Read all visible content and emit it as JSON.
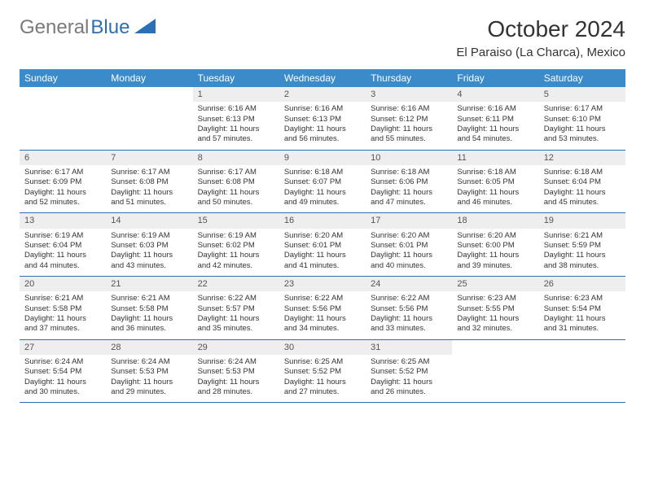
{
  "logo": {
    "gray": "General",
    "blue": "Blue"
  },
  "header": {
    "month_title": "October 2024",
    "location": "El Paraiso (La Charca), Mexico"
  },
  "colors": {
    "header_bg": "#3b8bca",
    "header_text": "#ffffff",
    "daynum_bg": "#eeeeee",
    "border": "#2b6fb5",
    "logo_gray": "#7a7a7a",
    "logo_blue": "#2b6fb5"
  },
  "weekdays": [
    "Sunday",
    "Monday",
    "Tuesday",
    "Wednesday",
    "Thursday",
    "Friday",
    "Saturday"
  ],
  "weeks": [
    [
      null,
      null,
      {
        "n": "1",
        "sunrise": "Sunrise: 6:16 AM",
        "sunset": "Sunset: 6:13 PM",
        "daylight": "Daylight: 11 hours and 57 minutes."
      },
      {
        "n": "2",
        "sunrise": "Sunrise: 6:16 AM",
        "sunset": "Sunset: 6:13 PM",
        "daylight": "Daylight: 11 hours and 56 minutes."
      },
      {
        "n": "3",
        "sunrise": "Sunrise: 6:16 AM",
        "sunset": "Sunset: 6:12 PM",
        "daylight": "Daylight: 11 hours and 55 minutes."
      },
      {
        "n": "4",
        "sunrise": "Sunrise: 6:16 AM",
        "sunset": "Sunset: 6:11 PM",
        "daylight": "Daylight: 11 hours and 54 minutes."
      },
      {
        "n": "5",
        "sunrise": "Sunrise: 6:17 AM",
        "sunset": "Sunset: 6:10 PM",
        "daylight": "Daylight: 11 hours and 53 minutes."
      }
    ],
    [
      {
        "n": "6",
        "sunrise": "Sunrise: 6:17 AM",
        "sunset": "Sunset: 6:09 PM",
        "daylight": "Daylight: 11 hours and 52 minutes."
      },
      {
        "n": "7",
        "sunrise": "Sunrise: 6:17 AM",
        "sunset": "Sunset: 6:08 PM",
        "daylight": "Daylight: 11 hours and 51 minutes."
      },
      {
        "n": "8",
        "sunrise": "Sunrise: 6:17 AM",
        "sunset": "Sunset: 6:08 PM",
        "daylight": "Daylight: 11 hours and 50 minutes."
      },
      {
        "n": "9",
        "sunrise": "Sunrise: 6:18 AM",
        "sunset": "Sunset: 6:07 PM",
        "daylight": "Daylight: 11 hours and 49 minutes."
      },
      {
        "n": "10",
        "sunrise": "Sunrise: 6:18 AM",
        "sunset": "Sunset: 6:06 PM",
        "daylight": "Daylight: 11 hours and 47 minutes."
      },
      {
        "n": "11",
        "sunrise": "Sunrise: 6:18 AM",
        "sunset": "Sunset: 6:05 PM",
        "daylight": "Daylight: 11 hours and 46 minutes."
      },
      {
        "n": "12",
        "sunrise": "Sunrise: 6:18 AM",
        "sunset": "Sunset: 6:04 PM",
        "daylight": "Daylight: 11 hours and 45 minutes."
      }
    ],
    [
      {
        "n": "13",
        "sunrise": "Sunrise: 6:19 AM",
        "sunset": "Sunset: 6:04 PM",
        "daylight": "Daylight: 11 hours and 44 minutes."
      },
      {
        "n": "14",
        "sunrise": "Sunrise: 6:19 AM",
        "sunset": "Sunset: 6:03 PM",
        "daylight": "Daylight: 11 hours and 43 minutes."
      },
      {
        "n": "15",
        "sunrise": "Sunrise: 6:19 AM",
        "sunset": "Sunset: 6:02 PM",
        "daylight": "Daylight: 11 hours and 42 minutes."
      },
      {
        "n": "16",
        "sunrise": "Sunrise: 6:20 AM",
        "sunset": "Sunset: 6:01 PM",
        "daylight": "Daylight: 11 hours and 41 minutes."
      },
      {
        "n": "17",
        "sunrise": "Sunrise: 6:20 AM",
        "sunset": "Sunset: 6:01 PM",
        "daylight": "Daylight: 11 hours and 40 minutes."
      },
      {
        "n": "18",
        "sunrise": "Sunrise: 6:20 AM",
        "sunset": "Sunset: 6:00 PM",
        "daylight": "Daylight: 11 hours and 39 minutes."
      },
      {
        "n": "19",
        "sunrise": "Sunrise: 6:21 AM",
        "sunset": "Sunset: 5:59 PM",
        "daylight": "Daylight: 11 hours and 38 minutes."
      }
    ],
    [
      {
        "n": "20",
        "sunrise": "Sunrise: 6:21 AM",
        "sunset": "Sunset: 5:58 PM",
        "daylight": "Daylight: 11 hours and 37 minutes."
      },
      {
        "n": "21",
        "sunrise": "Sunrise: 6:21 AM",
        "sunset": "Sunset: 5:58 PM",
        "daylight": "Daylight: 11 hours and 36 minutes."
      },
      {
        "n": "22",
        "sunrise": "Sunrise: 6:22 AM",
        "sunset": "Sunset: 5:57 PM",
        "daylight": "Daylight: 11 hours and 35 minutes."
      },
      {
        "n": "23",
        "sunrise": "Sunrise: 6:22 AM",
        "sunset": "Sunset: 5:56 PM",
        "daylight": "Daylight: 11 hours and 34 minutes."
      },
      {
        "n": "24",
        "sunrise": "Sunrise: 6:22 AM",
        "sunset": "Sunset: 5:56 PM",
        "daylight": "Daylight: 11 hours and 33 minutes."
      },
      {
        "n": "25",
        "sunrise": "Sunrise: 6:23 AM",
        "sunset": "Sunset: 5:55 PM",
        "daylight": "Daylight: 11 hours and 32 minutes."
      },
      {
        "n": "26",
        "sunrise": "Sunrise: 6:23 AM",
        "sunset": "Sunset: 5:54 PM",
        "daylight": "Daylight: 11 hours and 31 minutes."
      }
    ],
    [
      {
        "n": "27",
        "sunrise": "Sunrise: 6:24 AM",
        "sunset": "Sunset: 5:54 PM",
        "daylight": "Daylight: 11 hours and 30 minutes."
      },
      {
        "n": "28",
        "sunrise": "Sunrise: 6:24 AM",
        "sunset": "Sunset: 5:53 PM",
        "daylight": "Daylight: 11 hours and 29 minutes."
      },
      {
        "n": "29",
        "sunrise": "Sunrise: 6:24 AM",
        "sunset": "Sunset: 5:53 PM",
        "daylight": "Daylight: 11 hours and 28 minutes."
      },
      {
        "n": "30",
        "sunrise": "Sunrise: 6:25 AM",
        "sunset": "Sunset: 5:52 PM",
        "daylight": "Daylight: 11 hours and 27 minutes."
      },
      {
        "n": "31",
        "sunrise": "Sunrise: 6:25 AM",
        "sunset": "Sunset: 5:52 PM",
        "daylight": "Daylight: 11 hours and 26 minutes."
      },
      null,
      null
    ]
  ]
}
